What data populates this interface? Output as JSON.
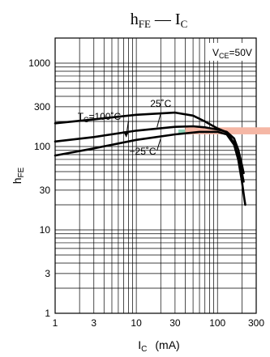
{
  "chart_data": {
    "type": "line",
    "title": {
      "main": "h",
      "sub": "FE",
      "dash": " — ",
      "main2": "I",
      "sub2": "C"
    },
    "xlabel": {
      "main": "I",
      "sub": "C",
      "unit": "(mA)"
    },
    "ylabel": {
      "main": "h",
      "sub": "FE"
    },
    "x_scale": "log",
    "y_scale": "log",
    "xlim": [
      1,
      300
    ],
    "ylim": [
      1,
      2000
    ],
    "grid": true,
    "x_ticks": [
      1,
      3,
      10,
      30,
      100,
      300
    ],
    "x_tick_labels": [
      "1",
      "3",
      "10",
      "30",
      "100",
      "300"
    ],
    "y_ticks": [
      1,
      3,
      10,
      30,
      100,
      300,
      1000
    ],
    "y_tick_labels": [
      "1",
      "3",
      "10",
      "30",
      "100",
      "300",
      "1000"
    ],
    "condition": {
      "main": "V",
      "sub": "CE",
      "rest": "=50V"
    },
    "series_labels": [
      {
        "main": "T",
        "sub": "C",
        "rest": "=100˚C",
        "x": 3.5,
        "y": 210
      },
      {
        "main": "",
        "sub": "",
        "rest": "25˚C",
        "x": 20,
        "y": 300
      },
      {
        "main": "",
        "sub": "",
        "rest": "−25˚C",
        "x": 12,
        "y": 80
      }
    ],
    "series": [
      {
        "values": [
          [
            1,
            190
          ],
          [
            3,
            212
          ],
          [
            10,
            240
          ],
          [
            30,
            255
          ],
          [
            50,
            235
          ],
          [
            70,
            200
          ],
          [
            100,
            165
          ],
          [
            130,
            148
          ],
          [
            160,
            110
          ],
          [
            180,
            75
          ],
          [
            200,
            48
          ],
          [
            210,
            38
          ]
        ]
      },
      {
        "values": [
          [
            1,
            115
          ],
          [
            3,
            130
          ],
          [
            10,
            155
          ],
          [
            30,
            172
          ],
          [
            50,
            175
          ],
          [
            70,
            170
          ],
          [
            100,
            160
          ],
          [
            130,
            150
          ],
          [
            160,
            125
          ],
          [
            180,
            92
          ],
          [
            200,
            60
          ],
          [
            210,
            48
          ]
        ]
      },
      {
        "values": [
          [
            1,
            78
          ],
          [
            3,
            95
          ],
          [
            10,
            120
          ],
          [
            30,
            140
          ],
          [
            60,
            150
          ],
          [
            100,
            150
          ],
          [
            130,
            140
          ],
          [
            160,
            105
          ],
          [
            180,
            70
          ],
          [
            200,
            38
          ],
          [
            215,
            23
          ],
          [
            220,
            20
          ]
        ]
      }
    ],
    "highlight_color": "#f5b7a5",
    "marker_color": "#8fd3b8"
  }
}
